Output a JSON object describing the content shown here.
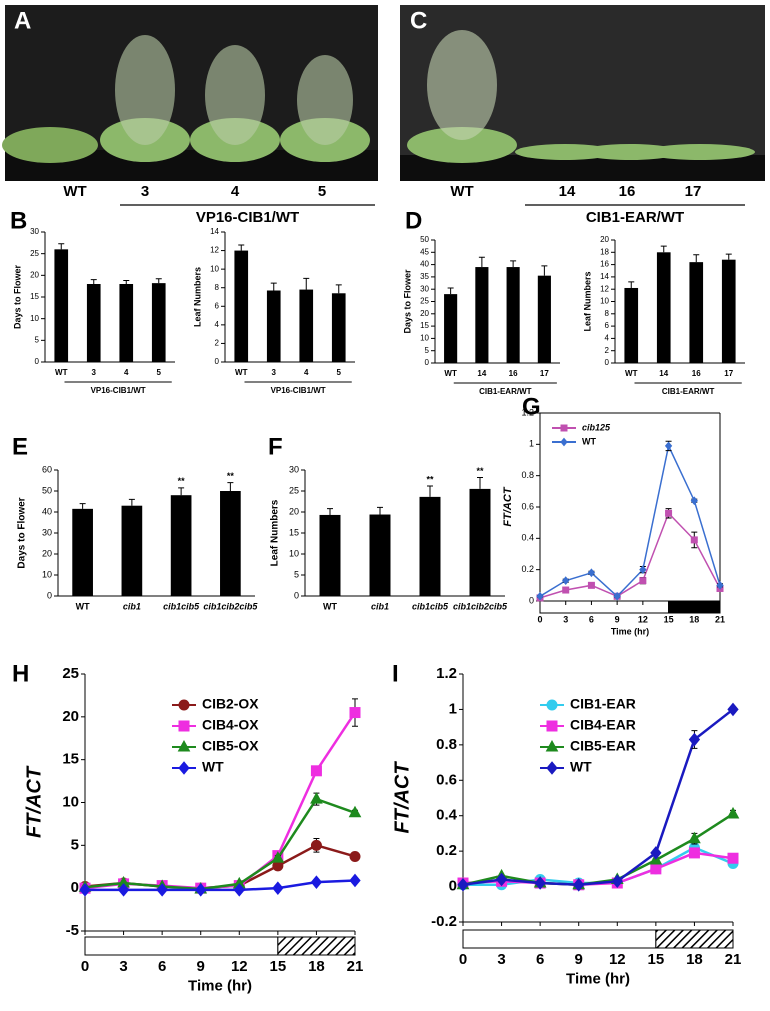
{
  "photos": [
    {
      "panel": "A",
      "labels": [
        "WT",
        "3",
        "4",
        "5"
      ],
      "group_label": "VP16-CIB1/WT"
    },
    {
      "panel": "C",
      "labels": [
        "WT",
        "14",
        "16",
        "17"
      ],
      "group_label": "CIB1-EAR/WT"
    }
  ],
  "chart_data": [
    {
      "type": "bar",
      "panel": "B",
      "y_label": "Days to Flower",
      "categories": [
        "WT",
        "3",
        "4",
        "5"
      ],
      "group_label": "VP16-CIB1/WT",
      "values": [
        26,
        18,
        18,
        18.2
      ],
      "errors": [
        1.3,
        1,
        0.8,
        1
      ],
      "color": "#000000",
      "ylim": [
        0,
        30
      ],
      "yticks": [
        0,
        5,
        10,
        15,
        20,
        25,
        30
      ]
    },
    {
      "type": "bar",
      "y_label": "Leaf Numbers",
      "categories": [
        "WT",
        "3",
        "4",
        "5"
      ],
      "group_label": "VP16-CIB1/WT",
      "values": [
        12,
        7.7,
        7.8,
        7.4
      ],
      "errors": [
        0.6,
        0.8,
        1.2,
        0.9
      ],
      "color": "#000000",
      "ylim": [
        0,
        14
      ],
      "yticks": [
        0,
        2,
        4,
        6,
        8,
        10,
        12,
        14
      ]
    },
    {
      "type": "bar",
      "panel": "D",
      "y_label": "Days to Flower",
      "categories": [
        "WT",
        "14",
        "16",
        "17"
      ],
      "group_label": "CIB1-EAR/WT",
      "values": [
        28,
        39,
        39,
        35.5
      ],
      "errors": [
        2.5,
        4,
        2.5,
        4
      ],
      "color": "#000000",
      "ylim": [
        0,
        50
      ],
      "yticks": [
        0,
        5,
        10,
        15,
        20,
        25,
        30,
        35,
        40,
        45,
        50
      ]
    },
    {
      "type": "bar",
      "y_label": "Leaf Numbers",
      "categories": [
        "WT",
        "14",
        "16",
        "17"
      ],
      "group_label": "CIB1-EAR/WT",
      "values": [
        12.2,
        18,
        16.4,
        16.8
      ],
      "errors": [
        1,
        1,
        1.2,
        0.9
      ],
      "color": "#000000",
      "ylim": [
        0,
        20
      ],
      "yticks": [
        0,
        2,
        4,
        6,
        8,
        10,
        12,
        14,
        16,
        18,
        20
      ]
    },
    {
      "type": "bar",
      "panel": "E",
      "y_label": "Days to Flower",
      "categories": [
        "WT",
        "cib1",
        "cib1cib5",
        "cib1cib2cib5"
      ],
      "values": [
        41.5,
        43,
        48,
        50
      ],
      "errors": [
        2.5,
        3,
        3.5,
        4
      ],
      "annotations": [
        null,
        null,
        "**",
        "**"
      ],
      "color": "#000000",
      "ylim": [
        0,
        60
      ],
      "yticks": [
        0,
        10,
        20,
        30,
        40,
        50,
        60
      ]
    },
    {
      "type": "bar",
      "panel": "F",
      "y_label": "Leaf Numbers",
      "categories": [
        "WT",
        "cib1",
        "cib1cib5",
        "cib1cib2cib5"
      ],
      "values": [
        19.3,
        19.4,
        23.6,
        25.5
      ],
      "errors": [
        1.5,
        1.7,
        2.6,
        2.7
      ],
      "annotations": [
        null,
        null,
        "**",
        "**"
      ],
      "color": "#000000",
      "ylim": [
        0,
        30
      ],
      "yticks": [
        0,
        5,
        10,
        15,
        20,
        25,
        30
      ]
    },
    {
      "type": "line",
      "panel": "G",
      "y_label": "FT/ACT",
      "x_label": "Time (hr)",
      "x": [
        0,
        3,
        6,
        9,
        12,
        15,
        18,
        21
      ],
      "series": [
        {
          "name": "cib125",
          "color": "#c050b0",
          "marker": "square",
          "values": [
            0.02,
            0.07,
            0.1,
            0.03,
            0.13,
            0.56,
            0.39,
            0.08
          ],
          "errors": [
            0.005,
            0.01,
            0.01,
            0.005,
            0.02,
            0.03,
            0.05,
            0.01
          ]
        },
        {
          "name": "WT",
          "color": "#3a6fd0",
          "marker": "diamond",
          "values": [
            0.03,
            0.13,
            0.18,
            0.03,
            0.2,
            0.99,
            0.64,
            0.1
          ],
          "errors": [
            0.005,
            0.01,
            0.01,
            0.005,
            0.02,
            0.03,
            0.01,
            0.01
          ]
        }
      ],
      "xlim": [
        0,
        21
      ],
      "xticks": [
        0,
        3,
        6,
        9,
        12,
        15,
        18,
        21
      ],
      "ylim": [
        0,
        1.2
      ],
      "yticks": [
        0,
        0.2,
        0.4,
        0.6,
        0.8,
        1,
        1.2
      ],
      "day_night": [
        {
          "start": 0,
          "end": 15,
          "style": "light"
        },
        {
          "start": 15,
          "end": 21,
          "style": "dark"
        }
      ]
    },
    {
      "type": "line",
      "panel": "H",
      "y_label": "FT/ACT",
      "x_label": "Time (hr)",
      "x": [
        0,
        3,
        6,
        9,
        12,
        15,
        18,
        21
      ],
      "series": [
        {
          "name": "CIB2-OX",
          "color": "#8b1a1a",
          "marker": "circle",
          "values": [
            0.2,
            0.6,
            0.2,
            0,
            0.3,
            2.6,
            5,
            3.7
          ],
          "errors": [
            0.1,
            0.1,
            0.1,
            0.1,
            0.1,
            0.3,
            0.8,
            0.2
          ]
        },
        {
          "name": "CIB4-OX",
          "color": "#ee2ee0",
          "marker": "square",
          "values": [
            0,
            0.5,
            0.3,
            0,
            0.3,
            3.8,
            13.7,
            20.5
          ],
          "errors": [
            0.1,
            0.1,
            0.1,
            0.1,
            0.1,
            0.3,
            0.5,
            1.6
          ]
        },
        {
          "name": "CIB5-OX",
          "color": "#1e8a1e",
          "marker": "triangle",
          "values": [
            0.1,
            0.6,
            0.2,
            -0.1,
            0.5,
            3.5,
            10.4,
            8.8
          ],
          "errors": [
            0.1,
            0.1,
            0.1,
            0.1,
            0.1,
            0.3,
            0.7,
            0.3
          ]
        },
        {
          "name": "WT",
          "color": "#1a1ae0",
          "marker": "diamond",
          "values": [
            -0.2,
            -0.2,
            -0.2,
            -0.2,
            -0.2,
            0,
            0.7,
            0.9
          ],
          "errors": [
            0.05,
            0.05,
            0.05,
            0.05,
            0.05,
            0.05,
            0.1,
            0.1
          ]
        }
      ],
      "xlim": [
        0,
        21
      ],
      "xticks": [
        0,
        3,
        6,
        9,
        12,
        15,
        18,
        21
      ],
      "ylim": [
        -5,
        25
      ],
      "yticks": [
        -5,
        0,
        5,
        10,
        15,
        20,
        25
      ],
      "day_night": [
        {
          "start": 0,
          "end": 15,
          "style": "light"
        },
        {
          "start": 15,
          "end": 21,
          "style": "hatched"
        }
      ]
    },
    {
      "type": "line",
      "panel": "I",
      "y_label": "FT/ACT",
      "x_label": "Time (hr)",
      "x": [
        0,
        3,
        6,
        9,
        12,
        15,
        18,
        21
      ],
      "series": [
        {
          "name": "CIB1-EAR",
          "color": "#33ccee",
          "marker": "circle",
          "values": [
            0.01,
            0.01,
            0.04,
            0.02,
            0.02,
            0.1,
            0.22,
            0.13
          ],
          "errors": [
            0.005,
            0.005,
            0.005,
            0.005,
            0.005,
            0.01,
            0.02,
            0.02
          ]
        },
        {
          "name": "CIB4-EAR",
          "color": "#ee2ee0",
          "marker": "square",
          "values": [
            0.02,
            0.03,
            0.02,
            0.01,
            0.02,
            0.1,
            0.19,
            0.16
          ],
          "errors": [
            0.005,
            0.005,
            0.005,
            0.005,
            0.005,
            0.01,
            0.02,
            0.02
          ]
        },
        {
          "name": "CIB5-EAR",
          "color": "#1e8a1e",
          "marker": "triangle",
          "values": [
            0.01,
            0.06,
            0.02,
            0.01,
            0.04,
            0.15,
            0.27,
            0.41
          ],
          "errors": [
            0.005,
            0.005,
            0.005,
            0.005,
            0.005,
            0.01,
            0.03,
            0.02
          ]
        },
        {
          "name": "WT",
          "color": "#1a1ac0",
          "marker": "diamond",
          "values": [
            0.01,
            0.04,
            0.02,
            0.01,
            0.03,
            0.19,
            0.83,
            1
          ],
          "errors": [
            0.005,
            0.005,
            0.005,
            0.005,
            0.005,
            0.01,
            0.05,
            0.005
          ]
        }
      ],
      "xlim": [
        0,
        21
      ],
      "xticks": [
        0,
        3,
        6,
        9,
        12,
        15,
        18,
        21
      ],
      "ylim": [
        -0.2,
        1.2
      ],
      "yticks": [
        -0.2,
        0,
        0.2,
        0.4,
        0.6,
        0.8,
        1,
        1.2
      ],
      "day_night": [
        {
          "start": 0,
          "end": 15,
          "style": "light"
        },
        {
          "start": 15,
          "end": 21,
          "style": "hatched"
        }
      ]
    }
  ]
}
